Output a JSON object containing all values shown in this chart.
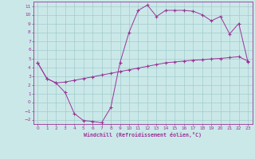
{
  "xlabel": "Windchill (Refroidissement éolien,°C)",
  "background_color": "#cbe8e8",
  "line_color": "#993399",
  "grid_color": "#a0cccc",
  "xlim": [
    -0.5,
    23.5
  ],
  "ylim": [
    -2.5,
    11.5
  ],
  "xticks": [
    0,
    1,
    2,
    3,
    4,
    5,
    6,
    7,
    8,
    9,
    10,
    11,
    12,
    13,
    14,
    15,
    16,
    17,
    18,
    19,
    20,
    21,
    22,
    23
  ],
  "yticks": [
    -2,
    -1,
    0,
    1,
    2,
    3,
    4,
    5,
    6,
    7,
    8,
    9,
    10,
    11
  ],
  "line1_x": [
    0,
    1,
    2,
    3,
    4,
    5,
    6,
    7,
    8,
    9,
    10,
    11,
    12,
    13,
    14,
    15,
    16,
    17,
    18,
    19,
    20,
    21,
    22,
    23
  ],
  "line1_y": [
    4.5,
    2.7,
    2.2,
    1.1,
    -1.3,
    -2.1,
    -2.2,
    -2.35,
    -0.6,
    4.5,
    8.0,
    10.5,
    11.1,
    9.8,
    10.5,
    10.5,
    10.5,
    10.4,
    10.0,
    9.3,
    9.8,
    7.8,
    9.0,
    4.6
  ],
  "line2_x": [
    0,
    1,
    2,
    3,
    4,
    5,
    6,
    7,
    8,
    9,
    10,
    11,
    12,
    13,
    14,
    15,
    16,
    17,
    18,
    19,
    20,
    21,
    22,
    23
  ],
  "line2_y": [
    4.5,
    2.7,
    2.2,
    2.3,
    2.5,
    2.7,
    2.9,
    3.1,
    3.3,
    3.5,
    3.7,
    3.9,
    4.1,
    4.3,
    4.5,
    4.6,
    4.7,
    4.8,
    4.85,
    4.95,
    5.0,
    5.1,
    5.2,
    4.7
  ]
}
